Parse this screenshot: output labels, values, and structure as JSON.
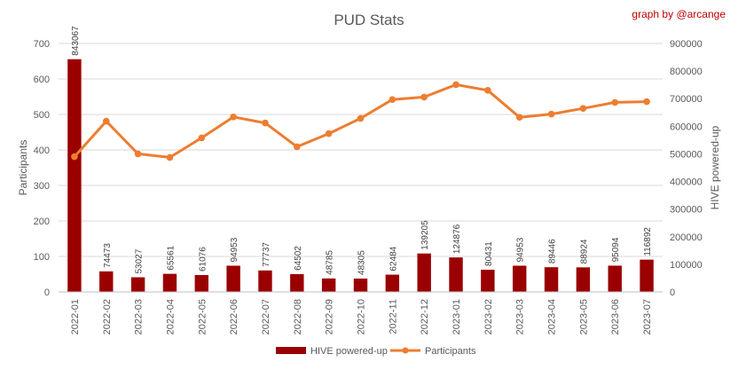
{
  "chart_data": {
    "type": "bar+line",
    "title": "PUD Stats",
    "credit": "graph by @arcange",
    "categories": [
      "2022-01",
      "2022-02",
      "2022-03",
      "2022-04",
      "2022-05",
      "2022-06",
      "2022-07",
      "2022-08",
      "2022-09",
      "2022-10",
      "2022-11",
      "2022-12",
      "2023-01",
      "2023-02",
      "2023-03",
      "2023-04",
      "2023-05",
      "2023-06",
      "2023-07"
    ],
    "series": [
      {
        "name": "HIVE powered-up",
        "type": "bar",
        "axis": "right",
        "color": "#9b0000",
        "values": [
          843067,
          74473,
          53027,
          65561,
          61076,
          94953,
          77737,
          64502,
          48785,
          48305,
          62484,
          139205,
          124876,
          80431,
          94953,
          89446,
          88924,
          95094,
          116892
        ]
      },
      {
        "name": "Participants",
        "type": "line",
        "axis": "left",
        "color": "#ed7d31",
        "values": [
          381,
          481,
          389,
          379,
          434,
          493,
          476,
          409,
          446,
          489,
          542,
          549,
          584,
          568,
          492,
          501,
          517,
          534,
          536
        ]
      }
    ],
    "ylabel": "Participants",
    "y2label": "HIVE powered-up",
    "ylim": [
      0,
      700
    ],
    "yticks": [
      0,
      100,
      200,
      300,
      400,
      500,
      600,
      700
    ],
    "y2lim": [
      0,
      900000
    ],
    "y2ticks": [
      0,
      100000,
      200000,
      300000,
      400000,
      500000,
      600000,
      700000,
      800000,
      900000
    ],
    "grid": true,
    "legend": "bottom"
  }
}
